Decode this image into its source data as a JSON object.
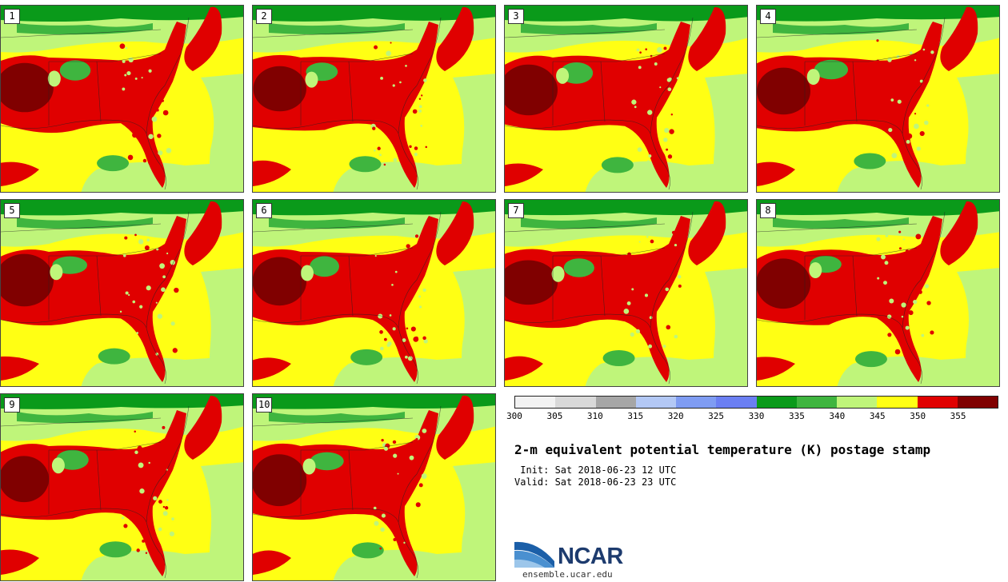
{
  "title": "2-m equivalent potential temperature (K) postage stamp",
  "init": " Init: Sat 2018-06-23 12 UTC",
  "valid": "Valid: Sat 2018-06-23 23 UTC",
  "logo": {
    "text": "NCAR",
    "url": "ensemble.ucar.edu"
  },
  "members": [
    "1",
    "2",
    "3",
    "4",
    "5",
    "6",
    "7",
    "8",
    "9",
    "10"
  ],
  "colorbar": {
    "ticks": [
      "300",
      "305",
      "310",
      "315",
      "320",
      "325",
      "330",
      "335",
      "340",
      "345",
      "350",
      "355"
    ],
    "colors": [
      "#f2f2f2",
      "#d9d9d9",
      "#a6a6a6",
      "#b3c8f5",
      "#7f9cf2",
      "#6b7ff2",
      "#0a9a1a",
      "#3fb53f",
      "#bff57a",
      "#ffff14",
      "#e00000",
      "#800000"
    ]
  },
  "map_colors": {
    "yellow": "#ffff14",
    "light_green": "#bff57a",
    "green": "#3fb53f",
    "dark_green": "#0a9a1a",
    "red": "#e00000",
    "dark_red": "#800000"
  }
}
